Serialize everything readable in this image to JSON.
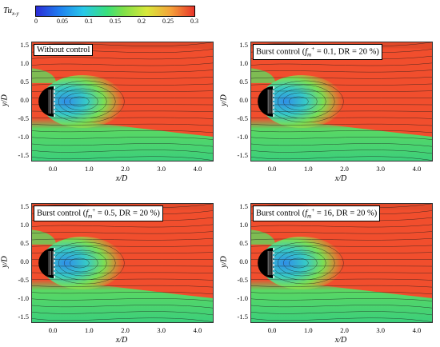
{
  "colorbar": {
    "title_main": "Tu",
    "title_sub": "x-y",
    "ticks": [
      "0",
      "0.05",
      "0.1",
      "0.15",
      "0.2",
      "0.25",
      "0.3"
    ],
    "range": [
      0,
      0.3
    ]
  },
  "axes": {
    "xlabel": "x/D",
    "ylabel": "y/D",
    "x_ticks": [
      "0.0",
      "1.0",
      "2.0",
      "3.0",
      "4.0"
    ],
    "y_ticks": [
      "1.5",
      "1.0",
      "0.5",
      "0.0",
      "-0.5",
      "-1.0",
      "-1.5"
    ],
    "xlim": [
      -0.6,
      4.4
    ],
    "ylim": [
      -1.6,
      1.6
    ]
  },
  "panels": [
    {
      "label_plain": "Without control"
    },
    {
      "label_pre": "Burst control (",
      "label_f": "f",
      "label_sub": "m",
      "label_sup": "+",
      "label_post": " = 0.1, DR = 20 %)"
    },
    {
      "label_pre": "Burst control (",
      "label_f": "f",
      "label_sub": "m",
      "label_sup": "+",
      "label_post": " = 0.5, DR = 20 %)"
    },
    {
      "label_pre": "Burst control (",
      "label_f": "f",
      "label_sub": "m",
      "label_sup": "+",
      "label_post": " = 16, DR = 20 %)"
    }
  ]
}
